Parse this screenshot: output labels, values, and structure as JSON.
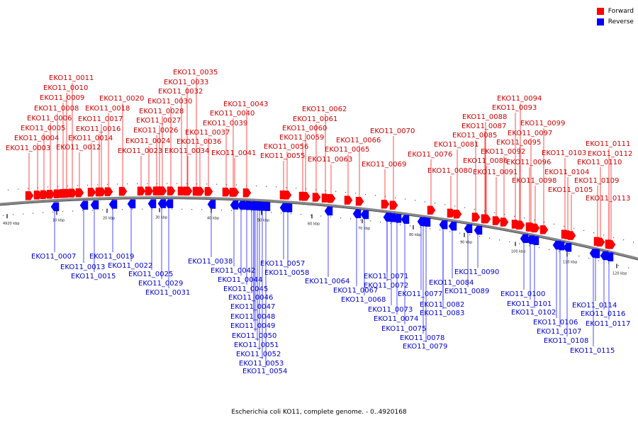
{
  "legend": {
    "forward": {
      "label": "Forward",
      "color": "#ff0000"
    },
    "reverse": {
      "label": "Reverse",
      "color": "#0000ff"
    }
  },
  "caption": "Escherichia coli KO11, complete genome. - 0..4920168",
  "ticks": [
    "4920 kbp",
    "10 kbp",
    "20 kbp",
    "30 kbp",
    "40 kbp",
    "50 kbp",
    "60 kbp",
    "70 kbp",
    "80 kbp",
    "90 kbp",
    "100 kbp",
    "110 kbp",
    "120 kbp"
  ],
  "forward_genes": [
    "EKO11_0003",
    "EKO11_0004",
    "EKO11_0005",
    "EKO11_0006",
    "EKO11_0008",
    "EKO11_0009",
    "EKO11_0010",
    "EKO11_0011",
    "EKO11_0012",
    "EKO11_0014",
    "EKO11_0016",
    "EKO11_0017",
    "EKO11_0018",
    "EKO11_0020",
    "EKO11_0023",
    "EKO11_0024",
    "EKO11_0026",
    "EKO11_0027",
    "EKO11_0028",
    "EKO11_0030",
    "EKO11_0032",
    "EKO11_0033",
    "EKO11_0034",
    "EKO11_0035",
    "EKO11_0036",
    "EKO11_0037",
    "EKO11_0039",
    "EKO11_0040",
    "EKO11_0041",
    "EKO11_0043",
    "EKO11_0055",
    "EKO11_0056",
    "EKO11_0059",
    "EKO11_0060",
    "EKO11_0061",
    "EKO11_0062",
    "EKO11_0063",
    "EKO11_0065",
    "EKO11_0066",
    "EKO11_0069",
    "EKO11_0070",
    "EKO11_0076",
    "EKO11_0080",
    "EKO11_0081",
    "EKO11_0085",
    "EKO11_0086",
    "EKO11_0087",
    "EKO11_0088",
    "EKO11_0091",
    "EKO11_0092",
    "EKO11_0093",
    "EKO11_0094",
    "EKO11_0095",
    "EKO11_0096",
    "EKO11_0097",
    "EKO11_0098",
    "EKO11_0099",
    "EKO11_0103",
    "EKO11_0104",
    "EKO11_0105",
    "EKO11_0109",
    "EKO11_0110",
    "EKO11_0111",
    "EKO11_0112",
    "EKO11_0113"
  ],
  "reverse_genes": [
    "EKO11_0007",
    "EKO11_0013",
    "EKO11_0015",
    "EKO11_0019",
    "EKO11_0022",
    "EKO11_0025",
    "EKO11_0029",
    "EKO11_0031",
    "EKO11_0038",
    "EKO11_0042",
    "EKO11_0044",
    "EKO11_0045",
    "EKO11_0046",
    "EKO11_0047",
    "EKO11_0048",
    "EKO11_0049",
    "EKO11_0050",
    "EKO11_0051",
    "EKO11_0052",
    "EKO11_0053",
    "EKO11_0054",
    "EKO11_0057",
    "EKO11_0058",
    "EKO11_0064",
    "EKO11_0067",
    "EKO11_0068",
    "EKO11_0071",
    "EKO11_0072",
    "EKO11_0073",
    "EKO11_0074",
    "EKO11_0075",
    "EKO11_0077",
    "EKO11_0078",
    "EKO11_0079",
    "EKO11_0082",
    "EKO11_0083",
    "EKO11_0084",
    "EKO11_0089",
    "EKO11_0090",
    "EKO11_0100",
    "EKO11_0101",
    "EKO11_0102",
    "EKO11_0106",
    "EKO11_0107",
    "EKO11_0108",
    "EKO11_0114",
    "EKO11_0115",
    "EKO11_0116",
    "EKO11_0117"
  ]
}
